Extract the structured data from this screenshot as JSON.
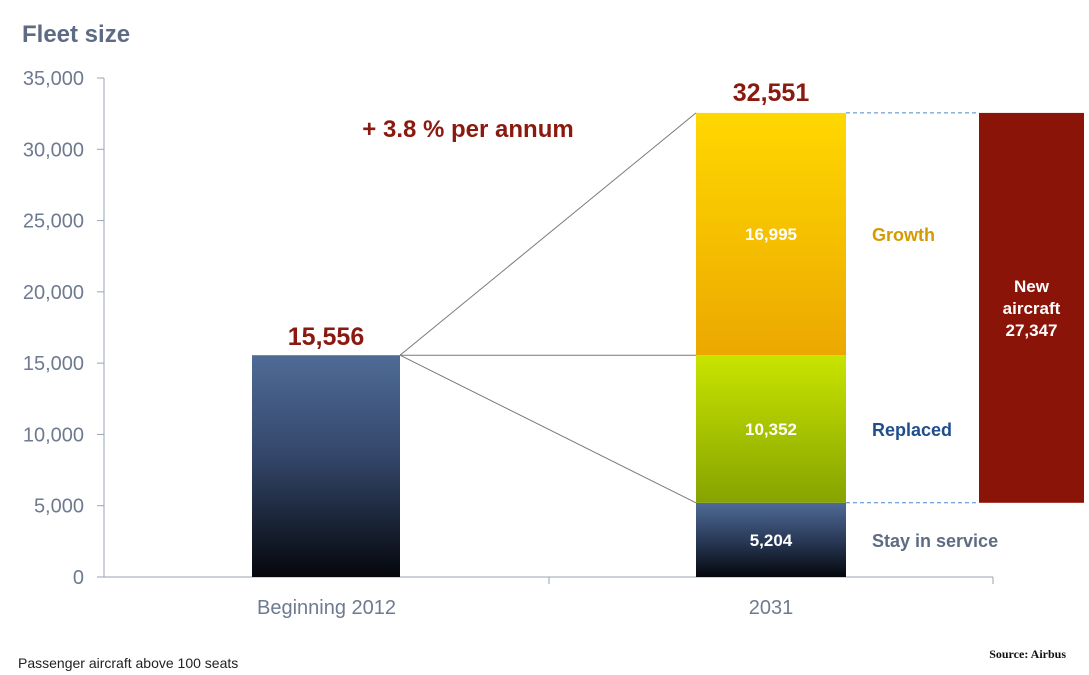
{
  "chart_data": {
    "type": "bar",
    "title": "Fleet size",
    "categories": [
      "Beginning 2012",
      "2031"
    ],
    "ylim": [
      0,
      35000
    ],
    "yticks": [
      0,
      5000,
      10000,
      15000,
      20000,
      25000,
      30000,
      35000
    ],
    "ytick_labels": [
      "0",
      "5,000",
      "10,000",
      "15,000",
      "20,000",
      "25,000",
      "30,000",
      "35,000"
    ],
    "grid": false,
    "bars": [
      {
        "category": "Beginning 2012",
        "value": 15556,
        "label": "15,556",
        "color": "#4a6590"
      }
    ],
    "stack": {
      "category": "2031",
      "total": 32551,
      "total_label": "32,551",
      "segments": [
        {
          "name": "Stay in service",
          "value": 5204,
          "label": "5,204",
          "color": "#4a6590",
          "legend_color": "#5e6b84"
        },
        {
          "name": "Replaced",
          "value": 10352,
          "label": "10,352",
          "color": "#a8c400",
          "legend_color": "#1f4e8c"
        },
        {
          "name": "Growth",
          "value": 16995,
          "label": "16,995",
          "color": "#f2b800",
          "legend_color": "#d49a00"
        }
      ]
    },
    "new_aircraft": {
      "line1": "New",
      "line2": "aircraft",
      "value": 27347,
      "value_label": "27,347",
      "color": "#8b1409"
    },
    "annotation": "+ 3.8 % per annum"
  },
  "footer": {
    "note": "Passenger aircraft above 100 seats",
    "source": "Source: Airbus"
  },
  "colors": {
    "axis": "#9aa3b2",
    "dashed": "#4a86c8",
    "connector": "#7a7a7a",
    "dark_red": "#8a1a10"
  }
}
